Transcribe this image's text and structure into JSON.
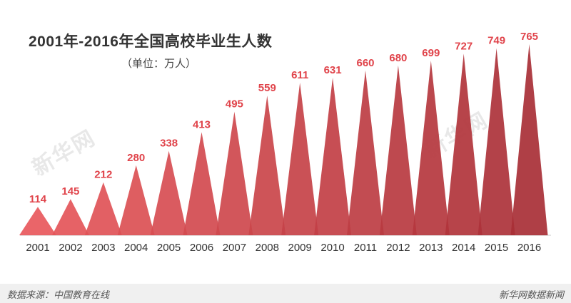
{
  "title": "2001年-2016年全国高校毕业生人数",
  "subtitle": "（单位：万人）",
  "footer": {
    "source": "数据来源：中国教育在线",
    "brand": "新华网数据新闻"
  },
  "watermark": "新华网",
  "colors": {
    "light": "#e8585c",
    "dark": "#a82f36",
    "label": "#e0434a",
    "axis_text": "#333333"
  },
  "chart_data": {
    "type": "area",
    "categories": [
      "2001",
      "2002",
      "2003",
      "2004",
      "2005",
      "2006",
      "2007",
      "2008",
      "2009",
      "2010",
      "2011",
      "2012",
      "2013",
      "2014",
      "2015",
      "2016"
    ],
    "values": [
      114,
      145,
      212,
      280,
      338,
      413,
      495,
      559,
      611,
      631,
      660,
      680,
      699,
      727,
      749,
      765
    ]
  }
}
